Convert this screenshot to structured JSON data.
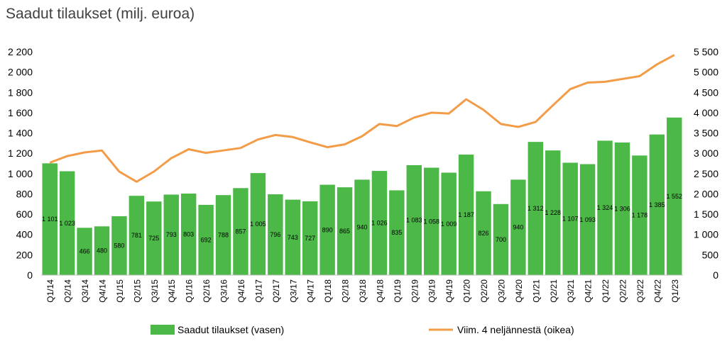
{
  "chart_data": {
    "type": "bar",
    "title": "Saadut tilaukset (milj. euroa)",
    "categories": [
      "Q1/14",
      "Q2/14",
      "Q3/14",
      "Q4/14",
      "Q1/15",
      "Q2/15",
      "Q3/15",
      "Q4/15",
      "Q1/16",
      "Q2/16",
      "Q3/16",
      "Q4/16",
      "Q1/17",
      "Q2/17",
      "Q3/17",
      "Q4/17",
      "Q1/18",
      "Q2/18",
      "Q3/18",
      "Q4/18",
      "Q1/19",
      "Q2/19",
      "Q3/19",
      "Q4/19",
      "Q1/20",
      "Q2/20",
      "Q3/20",
      "Q4/20",
      "Q1/21",
      "Q2/21",
      "Q3/21",
      "Q4/21",
      "Q1/22",
      "Q2/22",
      "Q3/22",
      "Q4/22",
      "Q1/23"
    ],
    "series": [
      {
        "name": "Saadut tilaukset (vasen)",
        "type": "bar",
        "axis": "left",
        "color": "#4CB847",
        "values": [
          1101,
          1023,
          466,
          480,
          580,
          781,
          725,
          793,
          803,
          692,
          788,
          857,
          1005,
          796,
          743,
          727,
          890,
          865,
          940,
          1026,
          835,
          1083,
          1058,
          1009,
          1187,
          826,
          700,
          940,
          1312,
          1228,
          1107,
          1093,
          1324,
          1306,
          1178,
          1385,
          1552
        ],
        "labels": [
          "1 101",
          "1 023",
          "466",
          "480",
          "580",
          "781",
          "725",
          "793",
          "803",
          "692",
          "788",
          "857",
          "1 005",
          "796",
          "743",
          "727",
          "890",
          "865",
          "940",
          "1 026",
          "835",
          "1 083",
          "1 058",
          "1 009",
          "1 187",
          "826",
          "700",
          "940",
          "1 312",
          "1 228",
          "1 107",
          "1 093",
          "1 324",
          "1 306",
          "1 178",
          "1 385",
          "1 552"
        ]
      },
      {
        "name": "Viim. 4 neljännestä (oikea)",
        "type": "line",
        "axis": "right",
        "color": "#F39C47",
        "values": [
          2770,
          2930,
          3020,
          3070,
          2550,
          2300,
          2550,
          2880,
          3100,
          3010,
          3070,
          3130,
          3340,
          3450,
          3400,
          3270,
          3150,
          3220,
          3420,
          3720,
          3670,
          3880,
          4000,
          3980,
          4330,
          4070,
          3720,
          3650,
          3770,
          4180,
          4580,
          4740,
          4760,
          4830,
          4900,
          5190,
          5420
        ]
      }
    ],
    "yaxis_left": {
      "min": 0,
      "max": 2200,
      "step": 200,
      "ticks": [
        "0",
        "200",
        "400",
        "600",
        "800",
        "1 000",
        "1 200",
        "1 400",
        "1 600",
        "1 800",
        "2 000",
        "2 200"
      ]
    },
    "yaxis_right": {
      "min": 0,
      "max": 5500,
      "step": 500,
      "ticks": [
        "0",
        "500",
        "1 000",
        "1 500",
        "2 000",
        "2 500",
        "3 000",
        "3 500",
        "4 000",
        "4 500",
        "5 000",
        "5 500"
      ]
    },
    "legend": {
      "position": "bottom",
      "items": [
        "Saadut tilaukset (vasen)",
        "Viim. 4 neljännestä (oikea)"
      ]
    },
    "grid": false
  }
}
